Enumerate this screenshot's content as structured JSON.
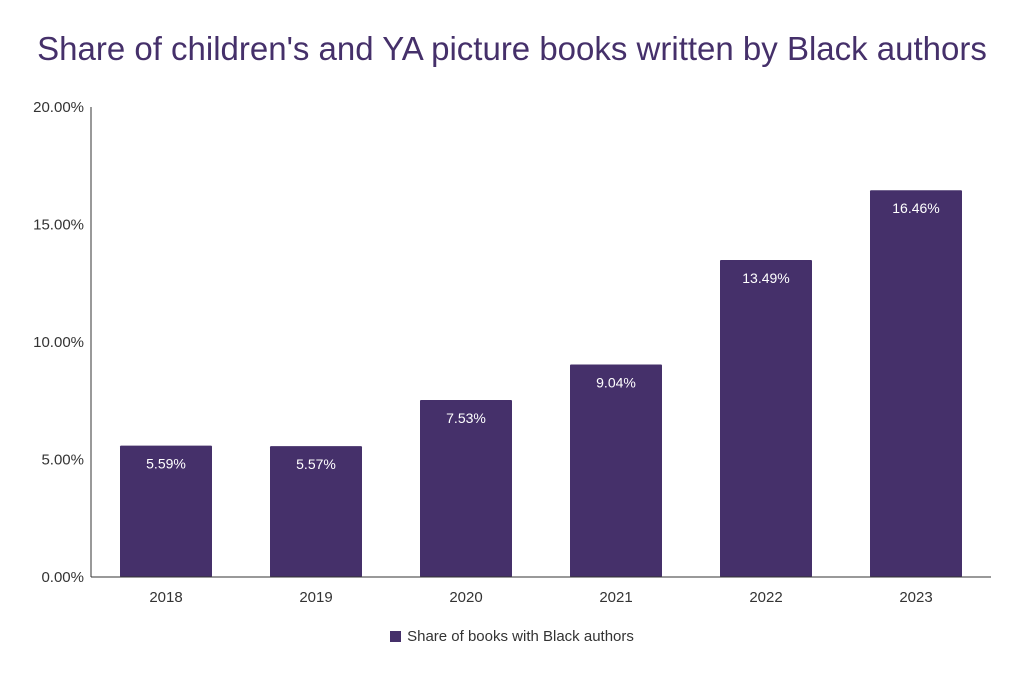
{
  "chart_data": {
    "type": "bar",
    "title": "Share of children's and YA picture books written by Black authors",
    "categories": [
      "2018",
      "2019",
      "2020",
      "2021",
      "2022",
      "2023"
    ],
    "series": [
      {
        "name": "Share of books with Black authors",
        "values": [
          5.59,
          5.57,
          7.53,
          9.04,
          13.49,
          16.46
        ],
        "color": "#45306a"
      }
    ],
    "data_labels": [
      "5.59%",
      "5.57%",
      "7.53%",
      "9.04%",
      "13.49%",
      "16.46%"
    ],
    "yticks": [
      "0.00%",
      "5.00%",
      "10.00%",
      "15.00%",
      "20.00%"
    ],
    "ylim": [
      0,
      20
    ],
    "xlabel": "",
    "ylabel": "",
    "grid": false,
    "legend": "bottom"
  }
}
